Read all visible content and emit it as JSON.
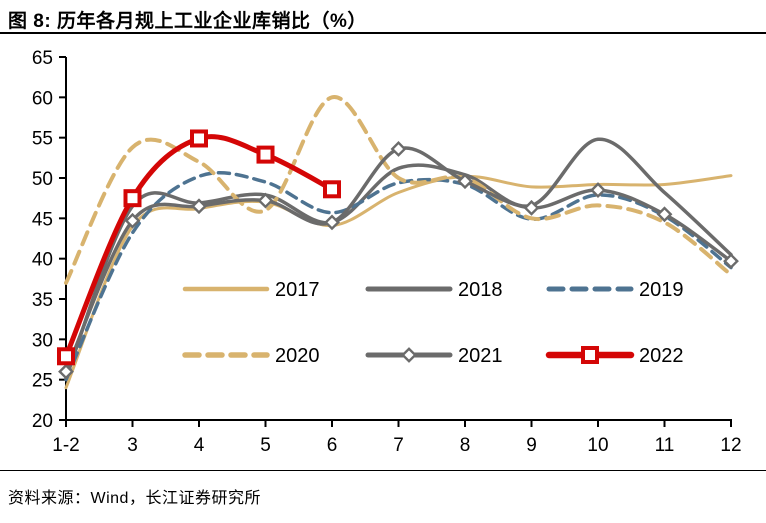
{
  "header": {
    "title": "图 8: 历年各月规上工业企业库销比（%）"
  },
  "footer": {
    "source": "资料来源：Wind，长江证券研究所"
  },
  "chart_data": {
    "type": "line",
    "title": "历年各月规上工业企业库销比（%）",
    "xlabel": "",
    "ylabel": "",
    "categories": [
      "1-2",
      "3",
      "4",
      "5",
      "6",
      "7",
      "8",
      "9",
      "10",
      "11",
      "12"
    ],
    "ylim": [
      20,
      65
    ],
    "yticks": [
      65,
      60,
      55,
      50,
      45,
      40,
      35,
      30,
      25,
      20
    ],
    "grid": false,
    "legend_position": "inside-center-two-rows",
    "axis_color": "#000000",
    "series": [
      {
        "name": "2017",
        "color": "#D8B36E",
        "style": "solid",
        "width": 3,
        "marker": "none",
        "values": [
          24.0,
          44.0,
          46.2,
          47.0,
          44.1,
          48.2,
          50.2,
          48.9,
          49.2,
          49.2,
          50.3
        ]
      },
      {
        "name": "2018",
        "color": "#6B6B6B",
        "style": "solid",
        "width": 3.5,
        "marker": "none",
        "values": [
          25.2,
          46.5,
          46.9,
          47.9,
          44.5,
          51.2,
          50.4,
          46.6,
          54.8,
          48.2,
          40.5
        ]
      },
      {
        "name": "2019",
        "color": "#4E7391",
        "style": "dashed",
        "width": 3.5,
        "marker": "none",
        "values": [
          25.0,
          43.2,
          50.2,
          49.5,
          45.7,
          49.4,
          49.2,
          44.9,
          47.9,
          45.3,
          38.9
        ]
      },
      {
        "name": "2020",
        "color": "#D8B36E",
        "style": "dashed",
        "width": 4,
        "marker": "none",
        "values": [
          37.0,
          53.8,
          52.0,
          46.0,
          60.0,
          50.0,
          50.0,
          45.0,
          46.6,
          44.5,
          38.0
        ]
      },
      {
        "name": "2021",
        "color": "#6B6B6B",
        "style": "solid",
        "width": 3.5,
        "marker": "diamond",
        "values": [
          26.0,
          44.7,
          46.5,
          47.2,
          44.5,
          53.6,
          49.6,
          46.3,
          48.5,
          45.5,
          39.7
        ]
      },
      {
        "name": "2022",
        "color": "#D40606",
        "style": "solid",
        "width": 5,
        "marker": "square",
        "values": [
          27.9,
          47.5,
          54.9,
          52.9,
          48.6,
          null,
          null,
          null,
          null,
          null,
          null
        ]
      }
    ]
  }
}
